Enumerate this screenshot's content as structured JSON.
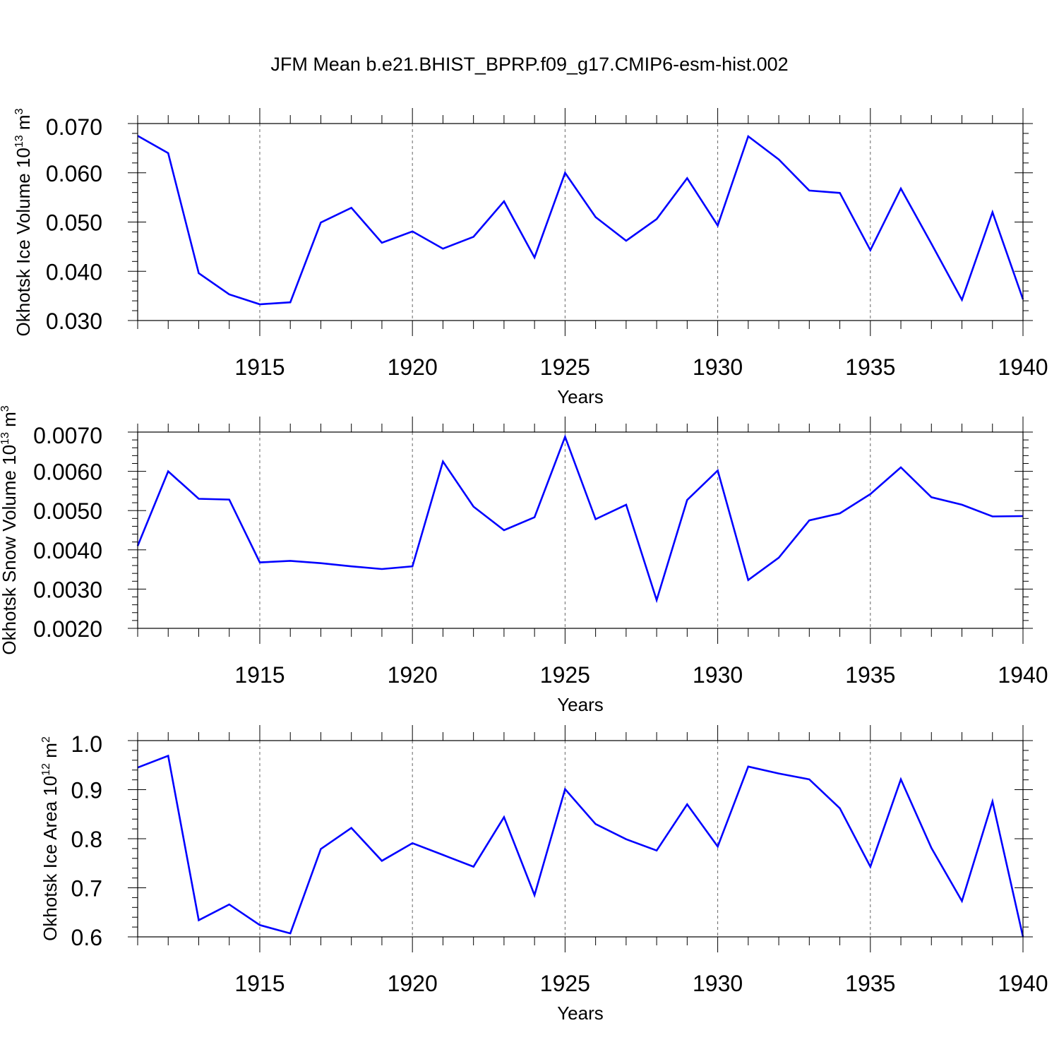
{
  "title": "JFM Mean b.e21.BHIST_BPRP.f09_g17.CMIP6-esm-hist.002",
  "chart_data": [
    {
      "type": "line",
      "xlabel": "Years",
      "ylabel": "Okhotsk Ice Volume 10",
      "ylabel_exp": "13",
      "ylabel_unit": " m",
      "ylabel_unit_exp": "3",
      "xlim": [
        1911,
        1940
      ],
      "ylim": [
        0.03,
        0.07
      ],
      "xticks": [
        1915,
        1920,
        1925,
        1930,
        1935,
        1940
      ],
      "xtick_labels": [
        "1915",
        "1920",
        "1925",
        "1930",
        "1935",
        "1940"
      ],
      "yticks": [
        0.03,
        0.04,
        0.05,
        0.06,
        0.07
      ],
      "ytick_labels": [
        "0.030",
        "0.040",
        "0.050",
        "0.060",
        "0.070"
      ],
      "grid": "dashed vertical lines at major x ticks",
      "series": [
        {
          "color": "#0000ff",
          "x": [
            1911,
            1912,
            1913,
            1914,
            1915,
            1916,
            1917,
            1918,
            1919,
            1920,
            1921,
            1922,
            1923,
            1924,
            1925,
            1926,
            1927,
            1928,
            1929,
            1930,
            1931,
            1932,
            1933,
            1934,
            1935,
            1936,
            1937,
            1938,
            1939,
            1940
          ],
          "y": [
            0.0675,
            0.064,
            0.0396,
            0.0353,
            0.0333,
            0.0337,
            0.0499,
            0.0529,
            0.0458,
            0.0481,
            0.0446,
            0.047,
            0.0542,
            0.0428,
            0.06,
            0.051,
            0.0462,
            0.0506,
            0.0589,
            0.0493,
            0.0674,
            0.0627,
            0.0564,
            0.0559,
            0.0443,
            0.0568,
            0.0456,
            0.0342,
            0.052,
            0.0343
          ]
        }
      ]
    },
    {
      "type": "line",
      "xlabel": "Years",
      "ylabel": "Okhotsk Snow Volume 10",
      "ylabel_exp": "13",
      "ylabel_unit": " m",
      "ylabel_unit_exp": "3",
      "xlim": [
        1911,
        1940
      ],
      "ylim": [
        0.002,
        0.007
      ],
      "xticks": [
        1915,
        1920,
        1925,
        1930,
        1935,
        1940
      ],
      "xtick_labels": [
        "1915",
        "1920",
        "1925",
        "1930",
        "1935",
        "1940"
      ],
      "yticks": [
        0.002,
        0.003,
        0.004,
        0.005,
        0.006,
        0.007
      ],
      "ytick_labels": [
        "0.0020",
        "0.0030",
        "0.0040",
        "0.0050",
        "0.0060",
        "0.0070"
      ],
      "grid": "dashed vertical lines at major x ticks",
      "series": [
        {
          "color": "#0000ff",
          "x": [
            1911,
            1912,
            1913,
            1914,
            1915,
            1916,
            1917,
            1918,
            1919,
            1920,
            1921,
            1922,
            1923,
            1924,
            1925,
            1926,
            1927,
            1928,
            1929,
            1930,
            1931,
            1932,
            1933,
            1934,
            1935,
            1936,
            1937,
            1938,
            1939,
            1940
          ],
          "y": [
            0.0041,
            0.006,
            0.0053,
            0.00528,
            0.00368,
            0.00372,
            0.00366,
            0.00358,
            0.00351,
            0.00358,
            0.00625,
            0.0051,
            0.0045,
            0.00483,
            0.00688,
            0.00478,
            0.00515,
            0.00272,
            0.00527,
            0.00602,
            0.00323,
            0.0038,
            0.00475,
            0.00493,
            0.00542,
            0.0061,
            0.00534,
            0.00515,
            0.00485,
            0.00486
          ]
        }
      ]
    },
    {
      "type": "line",
      "xlabel": "Years",
      "ylabel": "Okhotsk Ice Area 10",
      "ylabel_exp": "12",
      "ylabel_unit": " m",
      "ylabel_unit_exp": "2",
      "xlim": [
        1911,
        1940
      ],
      "ylim": [
        0.6,
        1.0
      ],
      "xticks": [
        1915,
        1920,
        1925,
        1930,
        1935,
        1940
      ],
      "xtick_labels": [
        "1915",
        "1920",
        "1925",
        "1930",
        "1935",
        "1940"
      ],
      "yticks": [
        0.6,
        0.7,
        0.8,
        0.9,
        1.0
      ],
      "ytick_labels": [
        "0.6",
        "0.7",
        "0.8",
        "0.9",
        "1.0"
      ],
      "grid": "dashed vertical lines at major x ticks",
      "series": [
        {
          "color": "#0000ff",
          "x": [
            1911,
            1912,
            1913,
            1914,
            1915,
            1916,
            1917,
            1918,
            1919,
            1920,
            1921,
            1922,
            1923,
            1924,
            1925,
            1926,
            1927,
            1928,
            1929,
            1930,
            1931,
            1932,
            1933,
            1934,
            1935,
            1936,
            1937,
            1938,
            1939,
            1940
          ],
          "y": [
            0.945,
            0.969,
            0.634,
            0.666,
            0.624,
            0.607,
            0.779,
            0.822,
            0.755,
            0.791,
            0.767,
            0.743,
            0.844,
            0.685,
            0.901,
            0.83,
            0.799,
            0.776,
            0.87,
            0.784,
            0.947,
            0.933,
            0.921,
            0.862,
            0.743,
            0.921,
            0.781,
            0.673,
            0.876,
            0.6
          ]
        }
      ]
    }
  ]
}
